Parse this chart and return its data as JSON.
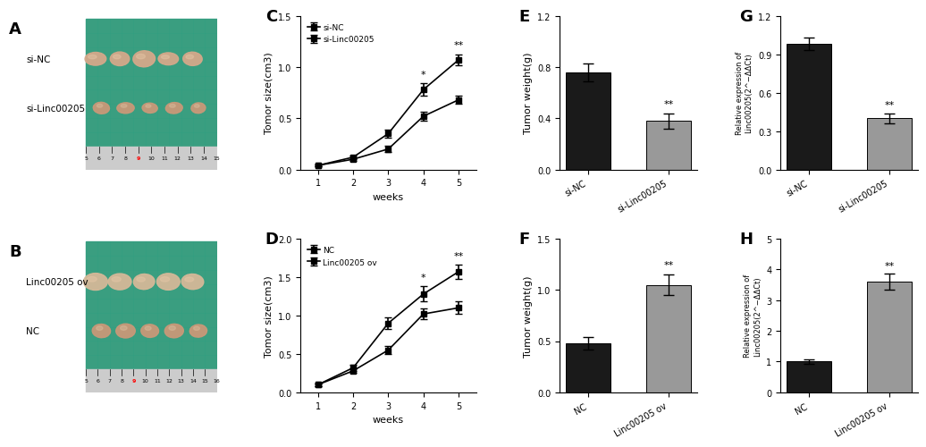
{
  "panel_labels": [
    "A",
    "B",
    "C",
    "D",
    "E",
    "F",
    "G",
    "H"
  ],
  "C": {
    "weeks": [
      1,
      2,
      3,
      4,
      5
    ],
    "siNC_mean": [
      0.04,
      0.12,
      0.35,
      0.78,
      1.07
    ],
    "siNC_err": [
      0.01,
      0.02,
      0.04,
      0.06,
      0.05
    ],
    "siLinc_mean": [
      0.04,
      0.1,
      0.2,
      0.52,
      0.68
    ],
    "siLinc_err": [
      0.01,
      0.02,
      0.03,
      0.04,
      0.04
    ],
    "xlabel": "weeks",
    "ylabel": "Tomor size(cm3)",
    "ylim": [
      0.0,
      1.5
    ],
    "yticks": [
      0.0,
      0.5,
      1.0,
      1.5
    ],
    "legend": [
      "si-NC",
      "si-Linc00205"
    ],
    "sig_week4": "*",
    "sig_week5": "**"
  },
  "D": {
    "weeks": [
      1,
      2,
      3,
      4,
      5
    ],
    "NC_mean": [
      0.1,
      0.28,
      0.55,
      1.02,
      1.1
    ],
    "NC_err": [
      0.02,
      0.03,
      0.05,
      0.07,
      0.08
    ],
    "ov_mean": [
      0.1,
      0.32,
      0.9,
      1.28,
      1.57
    ],
    "ov_err": [
      0.02,
      0.04,
      0.08,
      0.1,
      0.09
    ],
    "xlabel": "weeks",
    "ylabel": "Tomor size(cm3)",
    "ylim": [
      0.0,
      2.0
    ],
    "yticks": [
      0.0,
      0.5,
      1.0,
      1.5,
      2.0
    ],
    "legend": [
      "NC",
      "Linc00205 ov"
    ],
    "sig_week4": "*",
    "sig_week5": "**"
  },
  "E": {
    "categories": [
      "si-NC",
      "si-Linc00205"
    ],
    "values": [
      0.76,
      0.38
    ],
    "errors": [
      0.07,
      0.06
    ],
    "colors": [
      "#1a1a1a",
      "#999999"
    ],
    "ylabel": "Tumor weight(g)",
    "ylim": [
      0,
      1.2
    ],
    "yticks": [
      0.0,
      0.4,
      0.8,
      1.2
    ],
    "sig": "**"
  },
  "F": {
    "categories": [
      "NC",
      "Linc00205 ov"
    ],
    "values": [
      0.48,
      1.05
    ],
    "errors": [
      0.06,
      0.1
    ],
    "colors": [
      "#1a1a1a",
      "#999999"
    ],
    "ylabel": "Tumor weight(g)",
    "ylim": [
      0,
      1.5
    ],
    "yticks": [
      0.0,
      0.5,
      1.0,
      1.5
    ],
    "sig": "**"
  },
  "G": {
    "categories": [
      "si-NC",
      "si-Linc00205"
    ],
    "values": [
      0.98,
      0.4
    ],
    "errors": [
      0.05,
      0.04
    ],
    "colors": [
      "#1a1a1a",
      "#999999"
    ],
    "ylabel": "Relative expression of\nLinc00205(2^−ΔΔCt)",
    "ylim": [
      0,
      1.2
    ],
    "yticks": [
      0.0,
      0.3,
      0.6,
      0.9,
      1.2
    ],
    "sig": "**"
  },
  "H": {
    "categories": [
      "NC",
      "Linc00205 ov"
    ],
    "values": [
      1.0,
      3.6
    ],
    "errors": [
      0.08,
      0.25
    ],
    "colors": [
      "#1a1a1a",
      "#999999"
    ],
    "ylabel": "Relative expression of\nLinc00205(2^−ΔΔCt)",
    "ylim": [
      0,
      5
    ],
    "yticks": [
      0,
      1,
      2,
      3,
      4,
      5
    ],
    "sig": "**"
  },
  "photo_A": {
    "label": "A",
    "row_labels": [
      "si-NC",
      "si-Linc00205"
    ],
    "ruler_nums": [
      "5",
      "6",
      "7",
      "8",
      "9",
      "10",
      "11",
      "12",
      "13",
      "14",
      "15"
    ],
    "ruler_red_idx": 4,
    "grid_color": "#2e9e82",
    "bg_color": "#3a9e80",
    "ruler_color": "#d0d0d0",
    "tumor_color_top": "#d4a88a",
    "tumor_color_bot": "#c89878"
  },
  "photo_B": {
    "label": "B",
    "row_labels": [
      "Linc00205 ov",
      "NC"
    ],
    "ruler_nums": [
      "5",
      "6",
      "7",
      "8",
      "9",
      "10",
      "11",
      "12",
      "13",
      "14",
      "15",
      "16"
    ],
    "ruler_red_idx": 4,
    "grid_color": "#2e9e82",
    "bg_color": "#3a9e80",
    "ruler_color": "#d0d0d0",
    "tumor_color_top": "#d4b898",
    "tumor_color_bot": "#c89878"
  },
  "bg_color": "#ffffff",
  "tick_fontsize": 7,
  "label_fontsize": 8,
  "panel_fontsize": 13
}
